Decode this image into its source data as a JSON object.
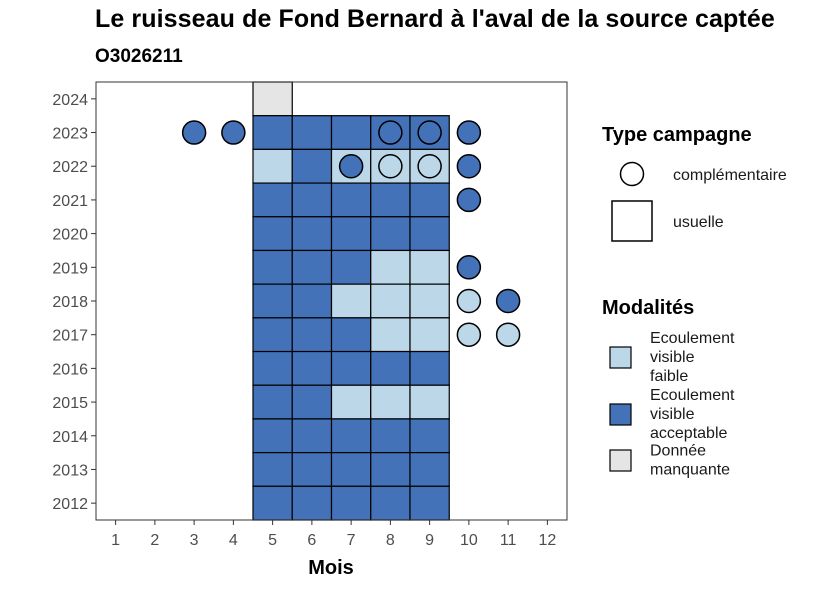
{
  "chart_data": {
    "type": "heatmap",
    "title": "Le ruisseau de Fond Bernard à l'aval de la source captée",
    "subtitle": "O3026211",
    "xlabel": "Mois",
    "ylabel": "",
    "x_ticks": [
      1,
      2,
      3,
      4,
      5,
      6,
      7,
      8,
      9,
      10,
      11,
      12
    ],
    "y_ticks": [
      2012,
      2013,
      2014,
      2015,
      2016,
      2017,
      2018,
      2019,
      2020,
      2021,
      2022,
      2023,
      2024
    ],
    "xlim": [
      0.5,
      12.5
    ],
    "ylim": [
      2011.5,
      2024.5
    ],
    "colors": {
      "faible": "#bcd8e8",
      "acceptable": "#4472b8",
      "manquante": "#e5e5e5"
    },
    "legend_shape": {
      "title": "Type campagne",
      "items": [
        {
          "shape": "circle",
          "label": "complémentaire"
        },
        {
          "shape": "square",
          "label": "usuelle"
        }
      ]
    },
    "legend_modalites": {
      "title": "Modalités",
      "items": [
        {
          "key": "faible",
          "lines": [
            "Ecoulement",
            "visible",
            "faible"
          ]
        },
        {
          "key": "acceptable",
          "lines": [
            "Ecoulement",
            "visible",
            "acceptable"
          ]
        },
        {
          "key": "manquante",
          "lines": [
            "Donnée",
            "manquante"
          ]
        }
      ]
    },
    "usuelle": [
      {
        "year": 2024,
        "months": [
          "manquante",
          null,
          null,
          null,
          null
        ]
      },
      {
        "year": 2023,
        "months": [
          "acceptable",
          "acceptable",
          "acceptable",
          "acceptable",
          "acceptable"
        ]
      },
      {
        "year": 2022,
        "months": [
          "faible",
          "acceptable",
          "faible",
          "faible",
          "faible"
        ]
      },
      {
        "year": 2021,
        "months": [
          "acceptable",
          "acceptable",
          "acceptable",
          "acceptable",
          "acceptable"
        ]
      },
      {
        "year": 2020,
        "months": [
          "acceptable",
          "acceptable",
          "acceptable",
          "acceptable",
          "acceptable"
        ]
      },
      {
        "year": 2019,
        "months": [
          "acceptable",
          "acceptable",
          "acceptable",
          "faible",
          "faible"
        ]
      },
      {
        "year": 2018,
        "months": [
          "acceptable",
          "acceptable",
          "faible",
          "faible",
          "faible"
        ]
      },
      {
        "year": 2017,
        "months": [
          "acceptable",
          "acceptable",
          "acceptable",
          "faible",
          "faible"
        ]
      },
      {
        "year": 2016,
        "months": [
          "acceptable",
          "acceptable",
          "acceptable",
          "acceptable",
          "acceptable"
        ]
      },
      {
        "year": 2015,
        "months": [
          "acceptable",
          "acceptable",
          "faible",
          "faible",
          "faible"
        ]
      },
      {
        "year": 2014,
        "months": [
          "acceptable",
          "acceptable",
          "acceptable",
          "acceptable",
          "acceptable"
        ]
      },
      {
        "year": 2013,
        "months": [
          "acceptable",
          "acceptable",
          "acceptable",
          "acceptable",
          "acceptable"
        ]
      },
      {
        "year": 2012,
        "months": [
          "acceptable",
          "acceptable",
          "acceptable",
          "acceptable",
          "acceptable"
        ]
      }
    ],
    "usuelle_month_start": 5,
    "complementaire": [
      {
        "year": 2023,
        "month": 3,
        "value": "acceptable"
      },
      {
        "year": 2023,
        "month": 4,
        "value": "acceptable"
      },
      {
        "year": 2023,
        "month": 8,
        "value": "acceptable"
      },
      {
        "year": 2023,
        "month": 9,
        "value": "acceptable"
      },
      {
        "year": 2023,
        "month": 10,
        "value": "acceptable"
      },
      {
        "year": 2022,
        "month": 7,
        "value": "acceptable"
      },
      {
        "year": 2022,
        "month": 8,
        "value": "faible"
      },
      {
        "year": 2022,
        "month": 9,
        "value": "faible"
      },
      {
        "year": 2022,
        "month": 10,
        "value": "acceptable"
      },
      {
        "year": 2021,
        "month": 10,
        "value": "acceptable"
      },
      {
        "year": 2019,
        "month": 10,
        "value": "acceptable"
      },
      {
        "year": 2018,
        "month": 10,
        "value": "faible"
      },
      {
        "year": 2018,
        "month": 11,
        "value": "acceptable"
      },
      {
        "year": 2017,
        "month": 10,
        "value": "faible"
      },
      {
        "year": 2017,
        "month": 11,
        "value": "faible"
      }
    ]
  }
}
